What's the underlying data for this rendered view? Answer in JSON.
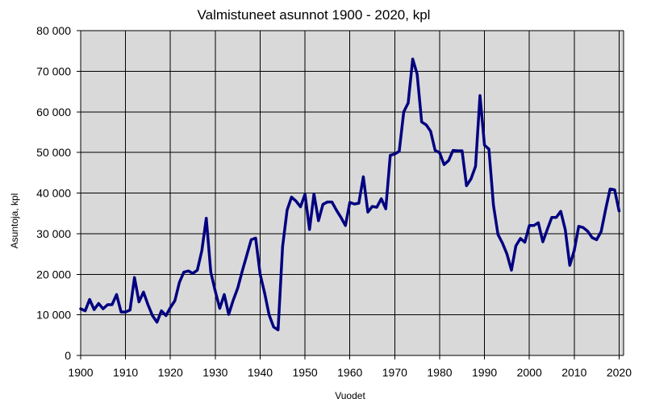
{
  "chart_data": {
    "type": "line",
    "title": "Valmistuneet  asunnot 1900 - 2020, kpl",
    "xlabel": "Vuodet",
    "ylabel": "Asuntoja, kpl",
    "xlim": [
      1900,
      2021
    ],
    "ylim": [
      0,
      80000
    ],
    "x_ticks": [
      1900,
      1910,
      1920,
      1930,
      1940,
      1950,
      1960,
      1970,
      1980,
      1990,
      2000,
      2010,
      2020
    ],
    "y_ticks": [
      0,
      10000,
      20000,
      30000,
      40000,
      50000,
      60000,
      70000,
      80000
    ],
    "y_tick_labels": [
      "0",
      "10 000",
      "20 000",
      "30 000",
      "40 000",
      "50 000",
      "60 000",
      "70 000",
      "80 000"
    ],
    "grid": true,
    "colors": {
      "line": "#000080",
      "plot_bg": "#d9d9d9",
      "grid": "#000000"
    },
    "series": [
      {
        "name": "Valmistuneet asunnot",
        "x": [
          1900,
          1901,
          1902,
          1903,
          1904,
          1905,
          1906,
          1907,
          1908,
          1909,
          1910,
          1911,
          1912,
          1913,
          1914,
          1915,
          1916,
          1917,
          1918,
          1919,
          1920,
          1921,
          1922,
          1923,
          1924,
          1925,
          1926,
          1927,
          1928,
          1929,
          1930,
          1931,
          1932,
          1933,
          1934,
          1935,
          1936,
          1937,
          1938,
          1939,
          1940,
          1941,
          1942,
          1943,
          1944,
          1945,
          1946,
          1947,
          1948,
          1949,
          1950,
          1951,
          1952,
          1953,
          1954,
          1955,
          1956,
          1957,
          1958,
          1959,
          1960,
          1961,
          1962,
          1963,
          1964,
          1965,
          1966,
          1967,
          1968,
          1969,
          1970,
          1971,
          1972,
          1973,
          1974,
          1975,
          1976,
          1977,
          1978,
          1979,
          1980,
          1981,
          1982,
          1983,
          1984,
          1985,
          1986,
          1987,
          1988,
          1989,
          1990,
          1991,
          1992,
          1993,
          1994,
          1995,
          1996,
          1997,
          1998,
          1999,
          2000,
          2001,
          2002,
          2003,
          2004,
          2005,
          2006,
          2007,
          2008,
          2009,
          2010,
          2011,
          2012,
          2013,
          2014,
          2015,
          2016,
          2017,
          2018,
          2019,
          2020
        ],
        "values": [
          11500,
          11000,
          13800,
          11300,
          12800,
          11500,
          12500,
          12500,
          15000,
          10700,
          10700,
          11200,
          19200,
          13200,
          15600,
          12500,
          9800,
          8200,
          11000,
          9800,
          11800,
          13500,
          18000,
          20500,
          20800,
          20200,
          21000,
          25800,
          33800,
          20500,
          15800,
          11600,
          15000,
          10100,
          13600,
          16600,
          20700,
          24600,
          28500,
          28900,
          20000,
          15400,
          10000,
          7000,
          6300,
          26800,
          35800,
          39000,
          38000,
          36600,
          39700,
          31000,
          39800,
          33200,
          37200,
          37800,
          37800,
          35800,
          34000,
          32000,
          37700,
          37300,
          37500,
          44000,
          35300,
          36700,
          36500,
          38600,
          36100,
          49300,
          49600,
          50300,
          60000,
          62200,
          73000,
          69300,
          57500,
          56800,
          55200,
          50500,
          49900,
          47000,
          48000,
          50500,
          50400,
          50400,
          41800,
          43500,
          46600,
          64000,
          51800,
          50800,
          37000,
          29800,
          27700,
          25000,
          21000,
          27000,
          28800,
          27900,
          32000,
          32000,
          32700,
          28000,
          31000,
          34000,
          34000,
          35500,
          31000,
          22200,
          25800,
          31800,
          31500,
          30600,
          29000,
          28500,
          30500,
          36000,
          41000,
          40800,
          35600
        ]
      }
    ]
  }
}
